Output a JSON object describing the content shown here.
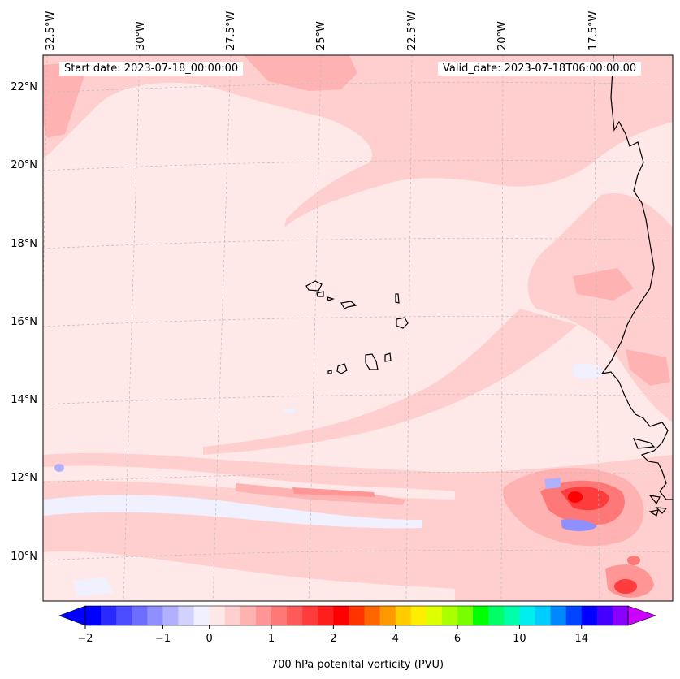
{
  "map": {
    "start_label": "Start date: 2023-07-18_00:00:00",
    "valid_label": "Valid_date: 2023-07-18T06:00:00.00",
    "lon_labels": [
      "32.5°W",
      "30°W",
      "27.5°W",
      "25°W",
      "22.5°W",
      "20°W",
      "17.5°W"
    ],
    "lat_labels": [
      "22°N",
      "20°N",
      "18°N",
      "16°N",
      "14°N",
      "12°N",
      "10°N"
    ],
    "extent": {
      "lon_min": -32.9,
      "lon_max": -15.8,
      "lat_min": 8.9,
      "lat_max": 22.8
    }
  },
  "colorbar": {
    "label": "700 hPa potenital vorticity (PVU)",
    "ticks": [
      "−2",
      "−1",
      "0",
      "1",
      "2",
      "4",
      "6",
      "10",
      "14"
    ],
    "colors": [
      "#0000ff",
      "#2a2aff",
      "#4b4bff",
      "#6d6dff",
      "#8f8fff",
      "#b0b0ff",
      "#d2d2ff",
      "#f0f0ff",
      "#ffe8e8",
      "#ffcfcf",
      "#ffb2b2",
      "#ff9595",
      "#ff7878",
      "#ff5a5a",
      "#ff3c3c",
      "#ff1e1e",
      "#ff0000",
      "#ff3300",
      "#ff6600",
      "#ff9900",
      "#ffcc00",
      "#ffee00",
      "#ddff00",
      "#aaff00",
      "#77ff00",
      "#00ff00",
      "#00ff66",
      "#00ffaa",
      "#00eeee",
      "#00ccff",
      "#0088ff",
      "#0044ff",
      "#0000ff",
      "#4400ff",
      "#8800ff"
    ],
    "extend_min_color": "#0000ff",
    "extend_max_color": "#cc00ff"
  },
  "colors": {
    "background_field": "#ffe8e8",
    "coast": "#000000"
  }
}
